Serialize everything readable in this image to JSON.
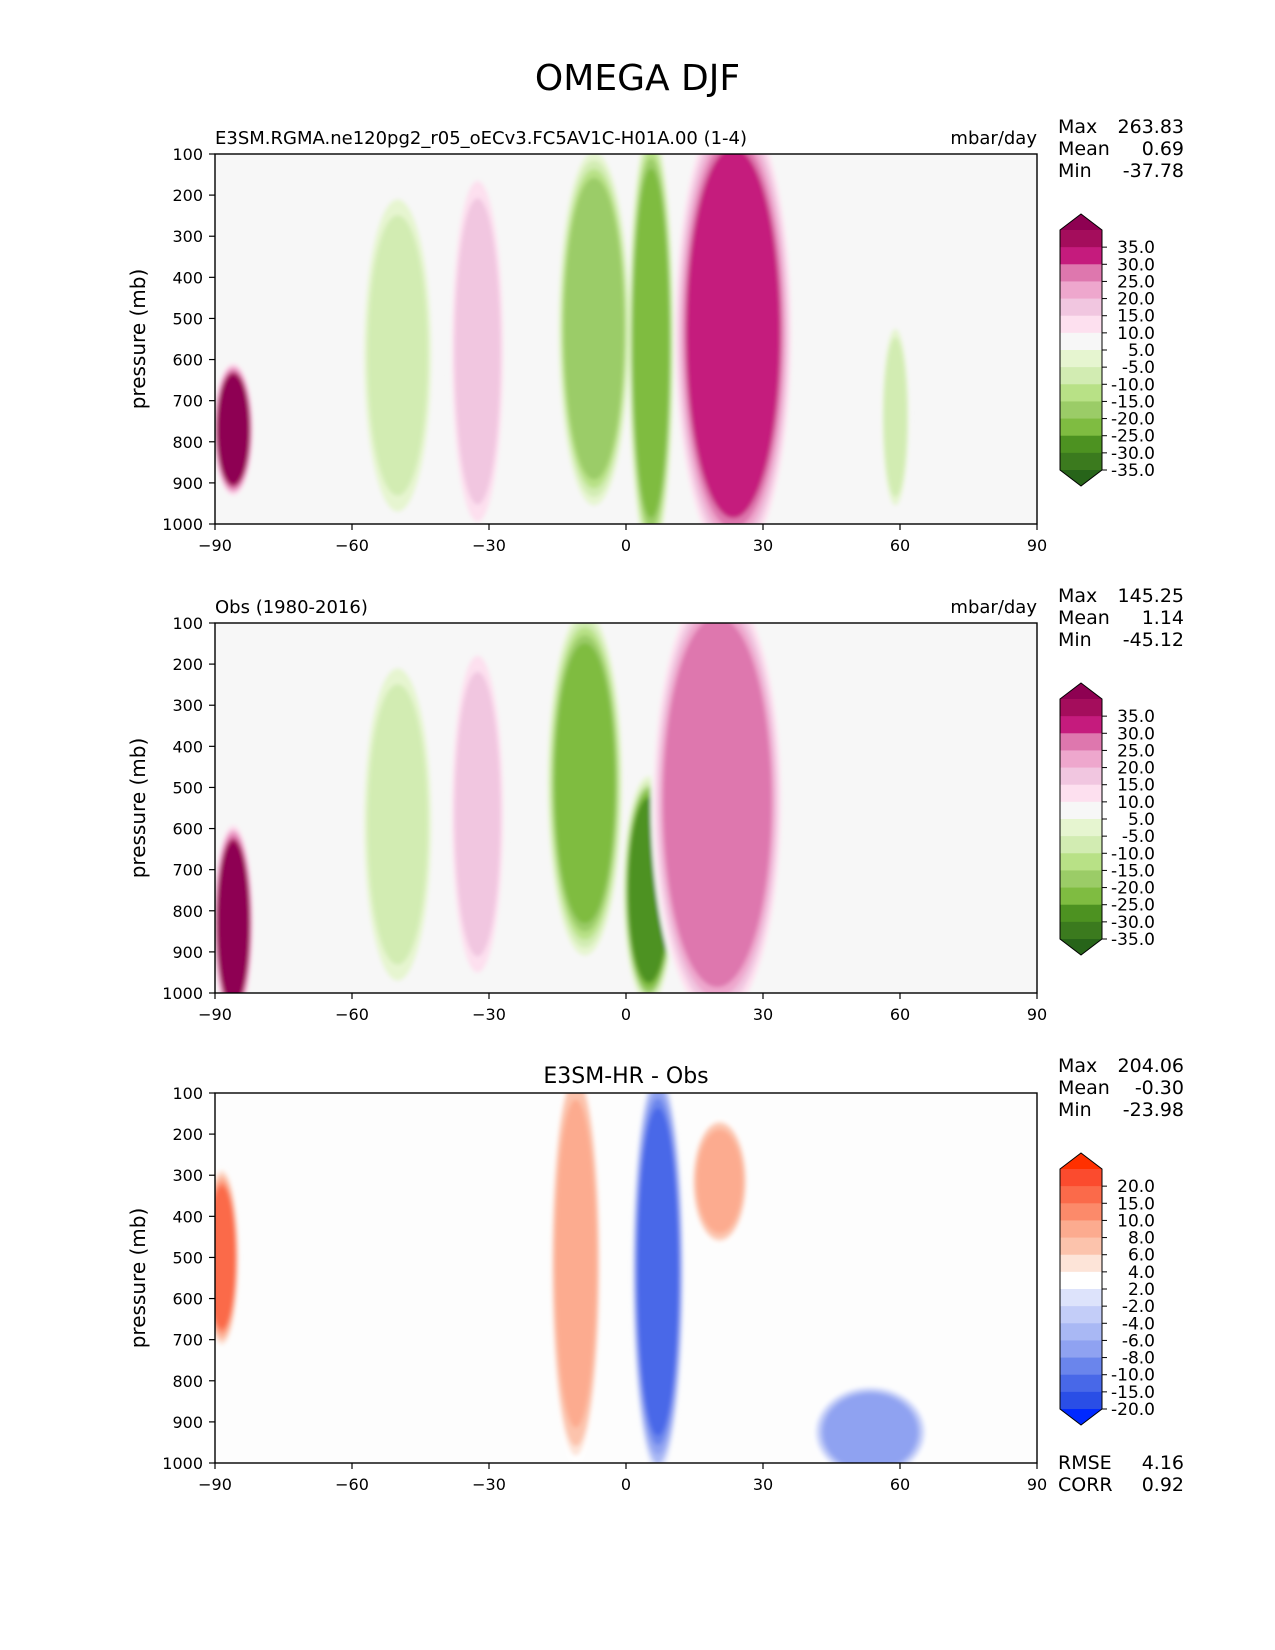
{
  "figure": {
    "title": "OMEGA DJF"
  },
  "chart_data": [
    {
      "type": "contour",
      "title_left": "E3SM.RGMA.ne120pg2_r05_oECv3.FC5AV1C-H01A.00 (1-4)",
      "title_center": "",
      "units": "mbar/day",
      "xlabel": "",
      "ylabel": "pressure (mb)",
      "xlim": [
        -90,
        90
      ],
      "ylim": [
        1000,
        100
      ],
      "xticks": [
        "−90",
        "−60",
        "−30",
        "0",
        "30",
        "60",
        "90"
      ],
      "yticks": [
        "100",
        "200",
        "300",
        "400",
        "500",
        "600",
        "700",
        "800",
        "900",
        "1000"
      ],
      "stats": {
        "labels": [
          "Max",
          "Mean",
          "Min"
        ],
        "values": [
          "263.83",
          "0.69",
          "-37.78"
        ]
      },
      "colorbar": {
        "labels": [
          "35.0",
          "30.0",
          "25.0",
          "20.0",
          "15.0",
          "10.0",
          "5.0",
          "-5.0",
          "-10.0",
          "-15.0",
          "-20.0",
          "-25.0",
          "-30.0",
          "-35.0"
        ],
        "colors": [
          "#8e0152",
          "#a40d5c",
          "#c51b7d",
          "#de77ae",
          "#eea7cd",
          "#f1c6e0",
          "#fde0ef",
          "#f7f7f7",
          "#e6f5d0",
          "#d2ecb2",
          "#b8e186",
          "#9bcc67",
          "#7fbc41",
          "#4d9221",
          "#3b7a1e",
          "#276419"
        ]
      },
      "features": [
        {
          "lat": [
            -88,
            -84
          ],
          "p": [
            660,
            880
          ],
          "value": 40
        },
        {
          "lat": [
            -36,
            -29
          ],
          "p": [
            240,
            920
          ],
          "value": 12
        },
        {
          "lat": [
            -12,
            -2
          ],
          "p": [
            190,
            860
          ],
          "value": -22
        },
        {
          "lat": [
            3,
            8
          ],
          "p": [
            170,
            950
          ],
          "value": -30
        },
        {
          "lat": [
            15,
            32
          ],
          "p": [
            120,
            950
          ],
          "value": 25
        },
        {
          "lat": [
            -55,
            -45
          ],
          "p": [
            280,
            900
          ],
          "value": -12
        },
        {
          "lat": [
            58,
            60
          ],
          "p": [
            580,
            900
          ],
          "value": -15
        }
      ]
    },
    {
      "type": "contour",
      "title_left": "Obs (1980-2016)",
      "title_center": "",
      "units": "mbar/day",
      "xlabel": "",
      "ylabel": "pressure (mb)",
      "xlim": [
        -90,
        90
      ],
      "ylim": [
        1000,
        100
      ],
      "xticks": [
        "−90",
        "−60",
        "−30",
        "0",
        "30",
        "60",
        "90"
      ],
      "yticks": [
        "100",
        "200",
        "300",
        "400",
        "500",
        "600",
        "700",
        "800",
        "900",
        "1000"
      ],
      "stats": {
        "labels": [
          "Max",
          "Mean",
          "Min"
        ],
        "values": [
          "145.25",
          "1.14",
          "-45.12"
        ]
      },
      "colorbar": {
        "labels": [
          "35.0",
          "30.0",
          "25.0",
          "20.0",
          "15.0",
          "10.0",
          "5.0",
          "-5.0",
          "-10.0",
          "-15.0",
          "-20.0",
          "-25.0",
          "-30.0",
          "-35.0"
        ],
        "colors": [
          "#8e0152",
          "#a40d5c",
          "#c51b7d",
          "#de77ae",
          "#eea7cd",
          "#f1c6e0",
          "#fde0ef",
          "#f7f7f7",
          "#e6f5d0",
          "#d2ecb2",
          "#b8e186",
          "#9bcc67",
          "#7fbc41",
          "#4d9221",
          "#3b7a1e",
          "#276419"
        ]
      },
      "features": [
        {
          "lat": [
            -88,
            -84
          ],
          "p": [
            660,
            1000
          ],
          "value": 40
        },
        {
          "lat": [
            -36,
            -29
          ],
          "p": [
            250,
            880
          ],
          "value": 12
        },
        {
          "lat": [
            -14,
            -4
          ],
          "p": [
            180,
            800
          ],
          "value": -28
        },
        {
          "lat": [
            2,
            8
          ],
          "p": [
            550,
            950
          ],
          "value": -35
        },
        {
          "lat": [
            10,
            30
          ],
          "p": [
            120,
            950
          ],
          "value": 22
        },
        {
          "lat": [
            -55,
            -45
          ],
          "p": [
            280,
            900
          ],
          "value": -12
        }
      ]
    },
    {
      "type": "contour",
      "title_left": "",
      "title_center": "E3SM-HR - Obs",
      "units": "",
      "xlabel": "",
      "ylabel": "pressure (mb)",
      "xlim": [
        -90,
        90
      ],
      "ylim": [
        1000,
        100
      ],
      "xticks": [
        "−90",
        "−60",
        "−30",
        "0",
        "30",
        "60",
        "90"
      ],
      "yticks": [
        "100",
        "200",
        "300",
        "400",
        "500",
        "600",
        "700",
        "800",
        "900",
        "1000"
      ],
      "stats": {
        "labels": [
          "Max",
          "Mean",
          "Min"
        ],
        "values": [
          "204.06",
          "-0.30",
          "-23.98"
        ]
      },
      "metrics": {
        "labels": [
          "RMSE",
          "CORR"
        ],
        "values": [
          "4.16",
          "0.92"
        ]
      },
      "colorbar": {
        "labels": [
          "20.0",
          "15.0",
          "10.0",
          "8.0",
          "6.0",
          "4.0",
          "2.0",
          "-2.0",
          "-4.0",
          "-6.0",
          "-8.0",
          "-10.0",
          "-15.0",
          "-20.0"
        ],
        "colors": [
          "#ff3000",
          "#fb4b2e",
          "#fb6a4a",
          "#fc8a6a",
          "#fcab8f",
          "#fcc3ac",
          "#fde4d8",
          "#ffffff",
          "#dde3fb",
          "#c3cdf8",
          "#a9b8f4",
          "#8fa2f1",
          "#6a85ec",
          "#4868e8",
          "#2a4ee6",
          "#0029ff"
        ]
      },
      "features": [
        {
          "lat": [
            -14,
            -8
          ],
          "p": [
            150,
            880
          ],
          "value": 7
        },
        {
          "lat": [
            4,
            10
          ],
          "p": [
            170,
            900
          ],
          "value": -16
        },
        {
          "lat": [
            17,
            24
          ],
          "p": [
            210,
            420
          ],
          "value": 7
        },
        {
          "lat": [
            -90,
            -87
          ],
          "p": [
            350,
            650
          ],
          "value": 12
        },
        {
          "lat": [
            45,
            62
          ],
          "p": [
            850,
            1000
          ],
          "value": -9
        }
      ]
    }
  ]
}
